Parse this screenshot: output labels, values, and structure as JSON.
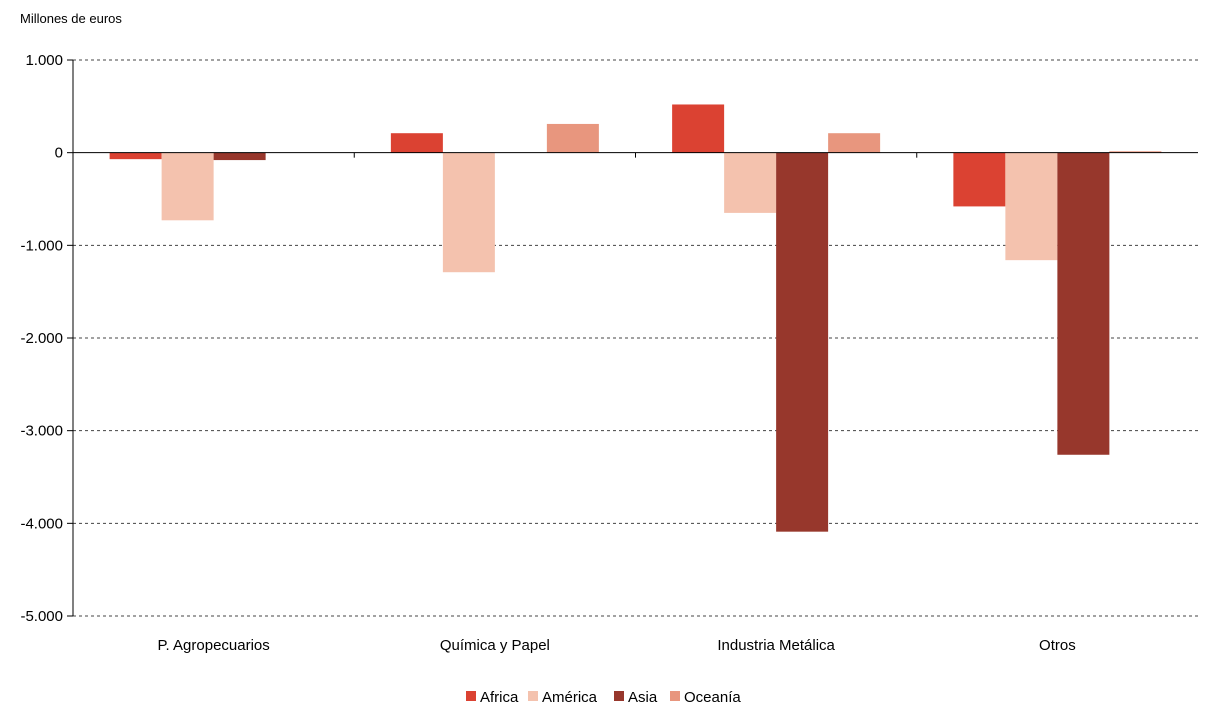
{
  "chart_data": {
    "type": "bar",
    "ylabel": "Millones de euros",
    "categories": [
      "P. Agropecuarios",
      "Química y Papel",
      "Industria Metálica",
      "Otros"
    ],
    "series": [
      {
        "name": "Africa",
        "color": "#db4232",
        "values": [
          -70,
          210,
          520,
          -580
        ]
      },
      {
        "name": "América",
        "color": "#f4c2ae",
        "values": [
          -730,
          -1290,
          -650,
          -1160
        ]
      },
      {
        "name": "Asia",
        "color": "#97372c",
        "values": [
          -80,
          0,
          -4090,
          -3260
        ]
      },
      {
        "name": "Oceanía",
        "color": "#e8967e",
        "values": [
          0,
          310,
          210,
          15
        ]
      }
    ],
    "ylim": [
      -5000,
      1000
    ],
    "yticks": [
      1000,
      0,
      -1000,
      -2000,
      -3000,
      -4000,
      -5000
    ],
    "ytick_labels": [
      "1.000",
      "0",
      "-1.000",
      "-2.000",
      "-3.000",
      "-4.000",
      "-5.000"
    ],
    "grid": true,
    "legend_position": "bottom"
  }
}
